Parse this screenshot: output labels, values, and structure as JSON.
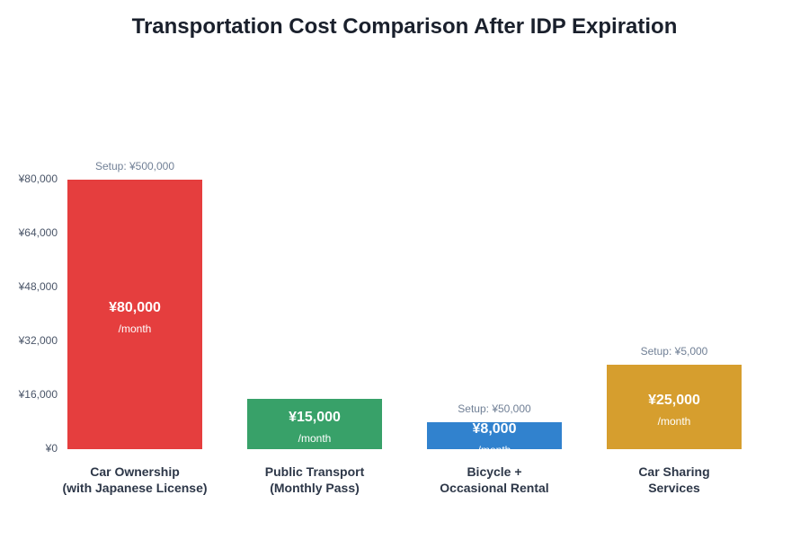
{
  "chart_data": {
    "type": "bar",
    "title": "Transportation Cost Comparison After IDP Expiration",
    "categories": [
      [
        "Car Ownership",
        "(with Japanese License)"
      ],
      [
        "Public Transport",
        "(Monthly Pass)"
      ],
      [
        "Bicycle +",
        "Occasional Rental"
      ],
      [
        "Car Sharing",
        "Services"
      ]
    ],
    "values": [
      80000,
      15000,
      8000,
      25000
    ],
    "value_labels": [
      "¥80,000",
      "¥15,000",
      "¥8,000",
      "¥25,000"
    ],
    "unit_label": "/month",
    "setup_labels": [
      "Setup: ¥500,000",
      "",
      "Setup: ¥50,000",
      "Setup: ¥5,000"
    ],
    "colors": [
      "#e53e3e",
      "#38a169",
      "#3182ce",
      "#d69e2e"
    ],
    "ylim": [
      0,
      80000
    ],
    "yticks": [
      0,
      16000,
      32000,
      48000,
      64000,
      80000
    ],
    "ytick_labels": [
      "¥0",
      "¥16,000",
      "¥32,000",
      "¥48,000",
      "¥64,000",
      "¥80,000"
    ],
    "grid": false,
    "legend": "none"
  }
}
